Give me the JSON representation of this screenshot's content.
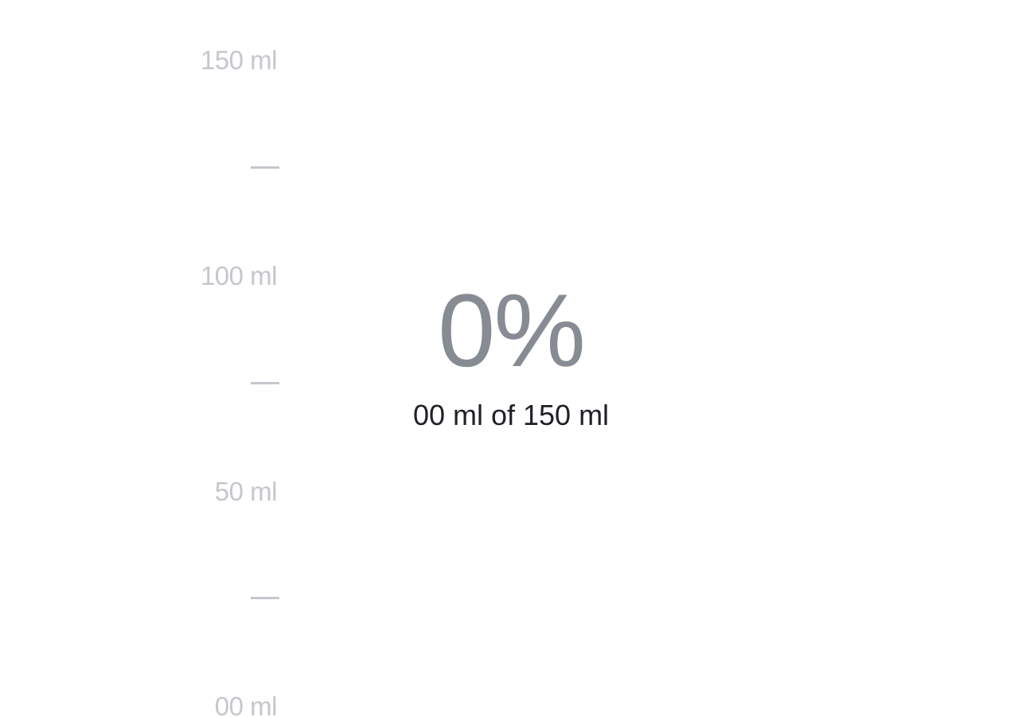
{
  "scale": {
    "labels": [
      "150 ml",
      "100 ml",
      "50 ml",
      "00 ml"
    ],
    "tick_mark_count": 3
  },
  "progress": {
    "percent_text": "0%",
    "fill_fraction": 0,
    "amount_text": "00 ml of 150 ml"
  },
  "colors": {
    "background": "#ffffff",
    "scale": "#c5c7cd",
    "percent": "#878b93",
    "amount": "#1f2126"
  }
}
